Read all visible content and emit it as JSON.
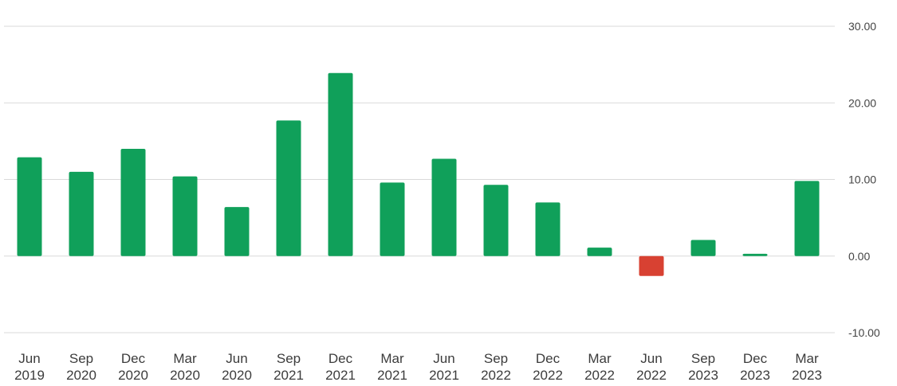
{
  "chart_data": {
    "type": "bar",
    "title": "",
    "xlabel": "",
    "ylabel": "",
    "categories": [
      [
        "Jun",
        "2019"
      ],
      [
        "Sep",
        "2020"
      ],
      [
        "Dec",
        "2020"
      ],
      [
        "Mar",
        "2020"
      ],
      [
        "Jun",
        "2020"
      ],
      [
        "Sep",
        "2021"
      ],
      [
        "Dec",
        "2021"
      ],
      [
        "Mar",
        "2021"
      ],
      [
        "Jun",
        "2021"
      ],
      [
        "Sep",
        "2022"
      ],
      [
        "Dec",
        "2022"
      ],
      [
        "Mar",
        "2022"
      ],
      [
        "Jun",
        "2022"
      ],
      [
        "Sep",
        "2023"
      ],
      [
        "Dec",
        "2023"
      ],
      [
        "Mar",
        "2023"
      ]
    ],
    "values": [
      12.9,
      11.0,
      14.0,
      10.4,
      6.4,
      17.7,
      23.9,
      9.6,
      12.7,
      9.3,
      7.0,
      1.1,
      -2.6,
      2.1,
      0.3,
      9.8
    ],
    "ylim": [
      -10,
      30
    ],
    "yticks": [
      30,
      20,
      10,
      0,
      -10
    ],
    "ytick_labels": [
      "30.00",
      "20.00",
      "10.00",
      "0.00",
      "-10.00"
    ],
    "grid": true,
    "y_axis_position": "right",
    "colors": {
      "positive": "#10a05a",
      "negative": "#d84132",
      "grid": "#d9d9d9"
    }
  }
}
